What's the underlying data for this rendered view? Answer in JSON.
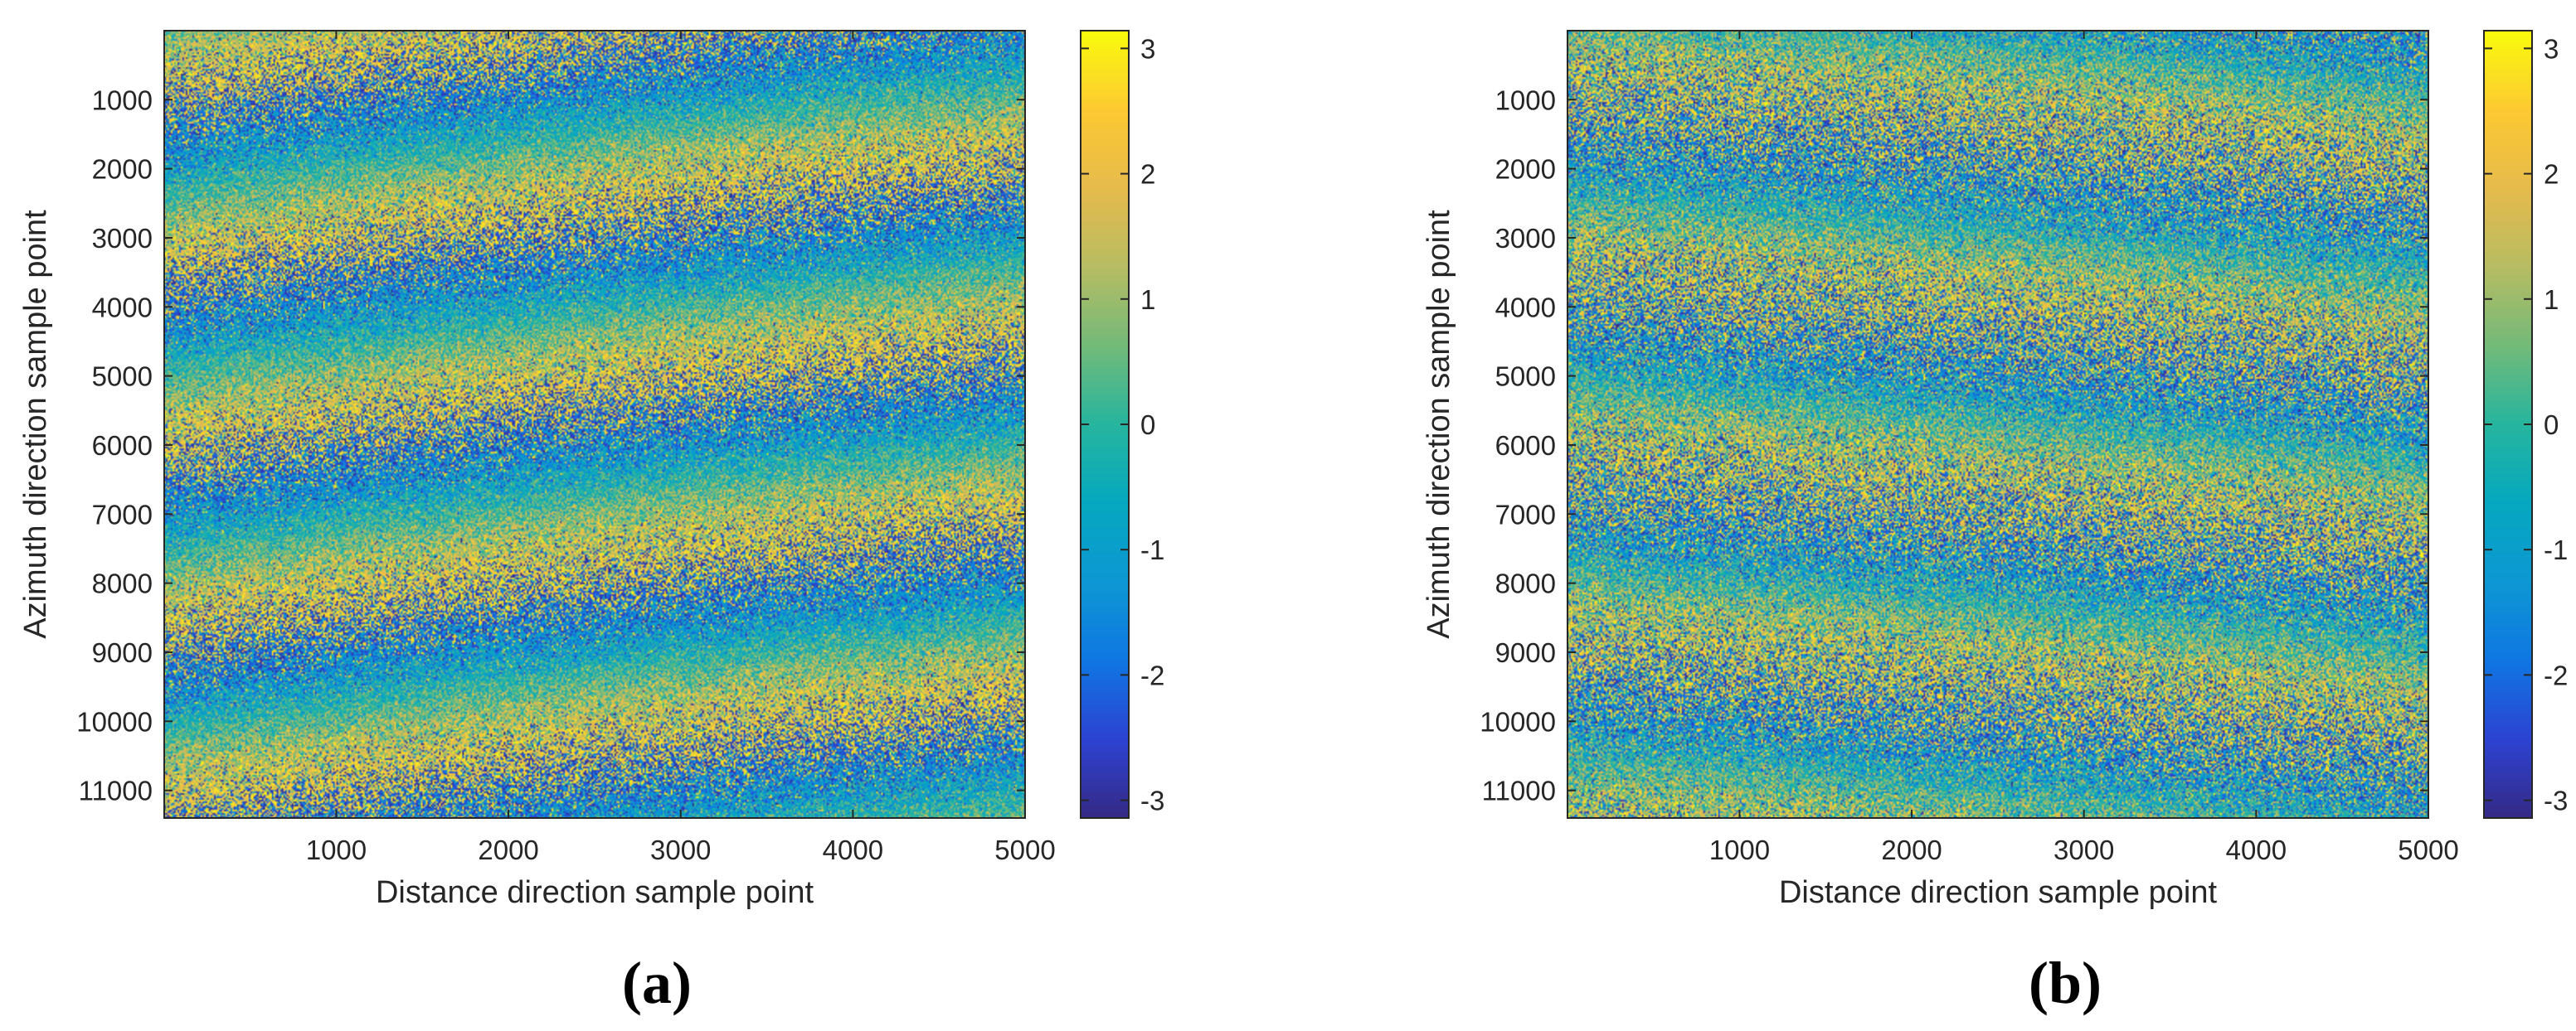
{
  "colormap": {
    "name": "parula",
    "stops": [
      "#352a87",
      "#2d44d3",
      "#0f77e3",
      "#0d98d3",
      "#06a8c0",
      "#27b59e",
      "#73ba7a",
      "#b7bc63",
      "#e6bb4d",
      "#fdc932",
      "#f9fb0e"
    ]
  },
  "chart_data": [
    {
      "type": "heatmap",
      "panel_label": "(a)",
      "title": "",
      "xlabel": "Distance direction sample point",
      "ylabel": "Azimuth direction sample point",
      "xlim": [
        1,
        5000
      ],
      "ylim": [
        1,
        11400
      ],
      "y_reversed": true,
      "x_ticks": [
        1000,
        2000,
        3000,
        4000,
        5000
      ],
      "x_tick_labels": [
        "1000",
        "2000",
        "3000",
        "4000",
        "5000"
      ],
      "y_ticks": [
        1000,
        2000,
        3000,
        4000,
        5000,
        6000,
        7000,
        8000,
        9000,
        10000,
        11000
      ],
      "y_tick_labels": [
        "1000",
        "2000",
        "3000",
        "4000",
        "5000",
        "6000",
        "7000",
        "8000",
        "9000",
        "10000",
        "11000"
      ],
      "colorbar": {
        "range": [
          -3.1416,
          3.1416
        ],
        "ticks": [
          -3,
          -2,
          -1,
          0,
          1,
          2,
          3
        ],
        "tick_labels": [
          "-3",
          "-2",
          "-1",
          "0",
          "1",
          "2",
          "3"
        ]
      },
      "fringe_pattern": {
        "description": "wrapped phase fringes rising to the right",
        "fringe_period_azimuth_samples": 2600,
        "azimuth_shift_across_range_samples": -1550,
        "noise": "high"
      }
    },
    {
      "type": "heatmap",
      "panel_label": "(b)",
      "title": "",
      "xlabel": "Distance direction sample point",
      "ylabel": "Azimuth direction sample point",
      "xlim": [
        1,
        5000
      ],
      "ylim": [
        1,
        11400
      ],
      "y_reversed": true,
      "x_ticks": [
        1000,
        2000,
        3000,
        4000,
        5000
      ],
      "x_tick_labels": [
        "1000",
        "2000",
        "3000",
        "4000",
        "5000"
      ],
      "y_ticks": [
        1000,
        2000,
        3000,
        4000,
        5000,
        6000,
        7000,
        8000,
        9000,
        10000,
        11000
      ],
      "y_tick_labels": [
        "1000",
        "2000",
        "3000",
        "4000",
        "5000",
        "6000",
        "7000",
        "8000",
        "9000",
        "10000",
        "11000"
      ],
      "colorbar": {
        "range": [
          -3.1416,
          3.1416
        ],
        "ticks": [
          -3,
          -2,
          -1,
          0,
          1,
          2,
          3
        ],
        "tick_labels": [
          "-3",
          "-2",
          "-1",
          "0",
          "1",
          "2",
          "3"
        ]
      },
      "fringe_pattern": {
        "description": "wrapped phase fringes falling to the right",
        "fringe_period_azimuth_samples": 2700,
        "azimuth_shift_across_range_samples": 1200,
        "noise": "very high"
      }
    }
  ]
}
